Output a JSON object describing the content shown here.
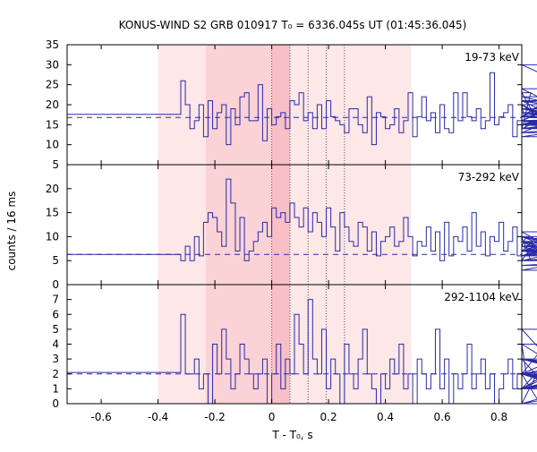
{
  "chart_data": {
    "type": "line",
    "title": "KONUS-WIND S2 GRB 010917 T₀ = 6336.045s UT (01:45:36.045)",
    "xlabel": "T - T₀, s",
    "ylabel": "counts / 16 ms",
    "xlim": [
      -0.72,
      0.88
    ],
    "x_ticks": [
      "-0.6",
      "-0.4",
      "-0.2",
      "0",
      "0.2",
      "0.4",
      "0.6",
      "0.8"
    ],
    "bin_width": 0.016,
    "hist_start": -0.72,
    "light_interval": [
      -0.4,
      0.49
    ],
    "dark_interval": [
      -0.232,
      0.0
    ],
    "center_interval": [
      0.0,
      0.064
    ],
    "dotted_lines": [
      0.0,
      0.064,
      0.128,
      0.192,
      0.256
    ],
    "colors": {
      "histogram": "#2a2aa8",
      "light_band": "#fde7e7",
      "dark_band": "#fbd3d6",
      "center_band": "#f8c0c6",
      "frame": "#000000"
    },
    "panels": [
      {
        "label": "19-73 keV",
        "ylim": [
          5,
          35
        ],
        "y_ticks": [
          "35",
          "30",
          "25",
          "20",
          "15",
          "10",
          "5"
        ],
        "background": 16.8,
        "values": [
          17.6,
          17.6,
          17.6,
          17.6,
          17.6,
          17.6,
          17.6,
          17.6,
          17.6,
          17.6,
          17.6,
          17.6,
          17.6,
          17.6,
          17.6,
          17.6,
          17.6,
          17.6,
          17.6,
          17.6,
          17.6,
          17.6,
          17.6,
          17.6,
          17.6,
          26,
          20,
          14,
          16,
          20,
          12,
          21,
          14,
          18,
          20,
          10,
          19,
          15,
          22,
          23,
          16,
          16,
          25,
          11,
          19,
          15,
          17,
          18,
          14,
          21,
          20,
          23,
          16,
          18,
          14,
          20,
          14,
          21,
          17,
          16,
          15,
          13,
          19,
          19,
          15,
          13,
          22,
          10,
          18,
          17,
          14,
          15,
          19,
          13,
          16,
          23,
          12,
          17,
          22,
          16,
          18,
          13,
          20,
          14,
          13,
          23,
          16,
          23,
          17,
          16,
          19,
          14,
          16,
          28,
          15,
          17,
          18,
          20,
          12,
          16,
          20,
          14,
          23,
          17,
          20,
          16,
          15,
          17,
          21,
          16,
          14,
          20,
          13,
          19,
          16,
          24,
          15,
          18,
          15,
          21,
          19,
          14,
          17,
          21,
          16,
          15,
          22,
          15,
          13,
          16,
          30,
          14,
          19,
          15,
          18,
          15,
          17,
          16,
          12,
          18,
          17,
          14,
          17,
          16,
          18,
          15,
          14
        ]
      },
      {
        "label": "73-292 keV",
        "ylim": [
          0,
          25
        ],
        "y_ticks": [
          "20",
          "15",
          "10",
          "5",
          "0"
        ],
        "background": 6.3,
        "values": [
          6.3,
          6.3,
          6.3,
          6.3,
          6.3,
          6.3,
          6.3,
          6.3,
          6.3,
          6.3,
          6.3,
          6.3,
          6.3,
          6.3,
          6.3,
          6.3,
          6.3,
          6.3,
          6.3,
          6.3,
          6.3,
          6.3,
          6.3,
          6.3,
          6.3,
          5,
          8,
          5,
          10,
          6,
          13,
          15,
          14,
          11,
          8,
          22,
          17,
          7,
          14,
          5,
          7,
          9,
          11,
          13,
          10,
          16,
          14,
          15,
          13,
          17,
          14,
          12,
          16,
          11,
          15,
          13,
          10,
          16,
          12,
          7,
          15,
          12,
          9,
          8,
          13,
          12,
          7,
          11,
          6,
          9,
          10,
          12,
          8,
          9,
          14,
          10,
          6,
          9,
          8,
          12,
          7,
          11,
          5,
          13,
          6,
          10,
          9,
          12,
          7,
          15,
          8,
          11,
          6,
          10,
          9,
          13,
          7,
          9,
          12,
          6,
          8,
          10,
          5,
          9,
          7,
          11,
          8,
          6,
          9,
          7,
          10,
          6,
          9,
          5,
          8,
          7,
          10,
          6,
          9,
          7,
          6,
          8,
          10,
          5,
          7,
          9,
          6,
          8,
          7,
          10,
          6,
          8,
          7,
          3,
          9,
          5,
          7,
          4,
          6
        ]
      },
      {
        "label": "292-1104 keV",
        "ylim": [
          0,
          8
        ],
        "y_ticks": [
          "7",
          "6",
          "5",
          "4",
          "3",
          "2",
          "1",
          "0"
        ],
        "background": 2.0,
        "values": [
          2.1,
          2.1,
          2.1,
          2.1,
          2.1,
          2.1,
          2.1,
          2.1,
          2.1,
          2.1,
          2.1,
          2.1,
          2.1,
          2.1,
          2.1,
          2.1,
          2.1,
          2.1,
          2.1,
          2.1,
          2.1,
          2.1,
          2.1,
          2.1,
          2.1,
          6,
          2,
          2,
          3,
          1,
          2,
          0,
          4,
          2,
          5,
          3,
          1,
          2,
          4,
          3,
          2,
          1,
          2,
          3,
          0,
          2,
          4,
          1,
          3,
          2,
          6,
          4,
          2,
          7,
          3,
          2,
          5,
          1,
          3,
          2,
          0,
          4,
          2,
          1,
          3,
          5,
          2,
          1,
          0,
          2,
          1,
          3,
          2,
          4,
          1,
          2,
          0,
          3,
          2,
          1,
          2,
          5,
          1,
          3,
          0,
          2,
          1,
          2,
          4,
          1,
          2,
          3,
          1,
          2,
          0,
          1,
          2,
          3,
          1,
          2,
          4,
          2,
          1,
          2,
          0,
          3,
          1,
          2,
          5,
          2,
          1,
          3,
          2,
          1,
          2,
          4,
          1,
          2,
          3,
          2,
          1,
          2,
          0,
          2,
          1,
          3,
          2,
          1,
          2,
          3,
          1,
          2,
          2,
          1,
          3,
          2,
          0,
          2,
          1,
          2,
          1,
          2
        ]
      }
    ]
  }
}
